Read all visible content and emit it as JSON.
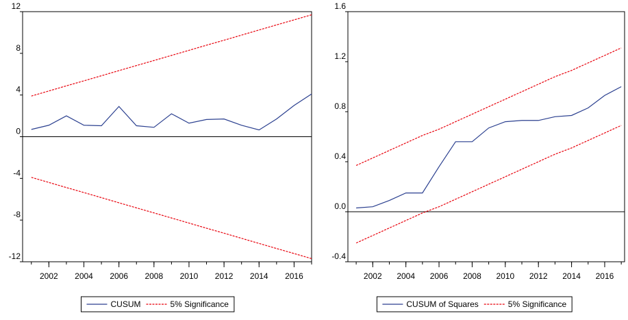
{
  "chart_data": [
    {
      "type": "line",
      "x": [
        2001,
        2002,
        2003,
        2004,
        2005,
        2006,
        2007,
        2008,
        2009,
        2010,
        2011,
        2012,
        2013,
        2014,
        2015,
        2016,
        2017
      ],
      "series": [
        {
          "name": "CUSUM",
          "color": "#2a3f8f",
          "values": [
            0.7,
            1.1,
            2.0,
            1.1,
            1.05,
            2.9,
            1.05,
            0.9,
            2.2,
            1.3,
            1.65,
            1.7,
            1.1,
            0.65,
            1.7,
            3.0,
            4.1
          ]
        }
      ],
      "bands": {
        "name": "5% Significance",
        "color": "#e8000b",
        "upper": [
          3.9,
          4.39,
          4.88,
          5.36,
          5.85,
          6.34,
          6.83,
          7.31,
          7.8,
          8.29,
          8.78,
          9.26,
          9.75,
          10.24,
          10.73,
          11.21,
          11.7
        ],
        "lower": [
          -3.9,
          -4.39,
          -4.88,
          -5.36,
          -5.85,
          -6.34,
          -6.83,
          -7.31,
          -7.8,
          -8.29,
          -8.78,
          -9.26,
          -9.75,
          -10.24,
          -10.73,
          -11.21,
          -11.7
        ]
      },
      "xlim": [
        2000.5,
        2017
      ],
      "xticks": [
        2002,
        2004,
        2006,
        2008,
        2010,
        2012,
        2014,
        2016
      ],
      "ylim": [
        -12,
        12
      ],
      "yticks": [
        -12,
        -8,
        -4,
        0,
        4,
        8,
        12
      ]
    },
    {
      "type": "line",
      "x": [
        2001,
        2002,
        2003,
        2004,
        2005,
        2006,
        2007,
        2008,
        2009,
        2010,
        2011,
        2012,
        2013,
        2014,
        2015,
        2016,
        2017
      ],
      "series": [
        {
          "name": "CUSUM of Squares",
          "color": "#2a3f8f",
          "values": [
            0.03,
            0.04,
            0.09,
            0.15,
            0.15,
            0.36,
            0.56,
            0.56,
            0.67,
            0.72,
            0.73,
            0.73,
            0.76,
            0.77,
            0.83,
            0.93,
            1.0
          ]
        }
      ],
      "bands": {
        "name": "5% Significance",
        "color": "#e8000b",
        "upper": [
          0.37,
          0.43,
          0.49,
          0.55,
          0.61,
          0.66,
          0.72,
          0.78,
          0.84,
          0.9,
          0.96,
          1.02,
          1.08,
          1.13,
          1.19,
          1.25,
          1.31
        ],
        "lower": [
          -0.25,
          -0.19,
          -0.13,
          -0.07,
          -0.01,
          0.04,
          0.1,
          0.16,
          0.22,
          0.28,
          0.34,
          0.4,
          0.46,
          0.51,
          0.57,
          0.63,
          0.69
        ]
      },
      "xlim": [
        2000.5,
        2017.2
      ],
      "xticks": [
        2002,
        2004,
        2006,
        2008,
        2010,
        2012,
        2014,
        2016
      ],
      "ylim": [
        -0.4,
        1.6
      ],
      "yticks": [
        -0.4,
        {
          "value": 0,
          "label": "0.0"
        },
        0.4,
        0.8,
        1.2,
        1.6
      ]
    }
  ]
}
